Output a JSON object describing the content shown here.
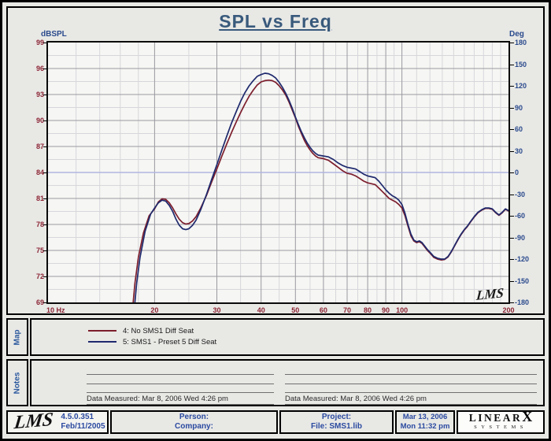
{
  "title": "SPL vs Freq",
  "watermark": "LMS",
  "map_tab": "Map",
  "notes_tab": "Notes",
  "axes": {
    "left": {
      "label": "dBSPL",
      "ticks": [
        99,
        96,
        93,
        90,
        87,
        84,
        81,
        78,
        75,
        72,
        69
      ],
      "color": "#8b2433"
    },
    "right": {
      "label": "Deg",
      "ticks": [
        180,
        150,
        120,
        90,
        60,
        30,
        0,
        -30,
        -60,
        -90,
        -120,
        -150,
        -180
      ],
      "color": "#2a4a8c"
    },
    "x": {
      "first_label": "10 Hz",
      "tick_values": [
        20,
        30,
        40,
        50,
        60,
        70,
        80,
        90,
        100,
        200
      ],
      "color": "#8b2433"
    }
  },
  "legend": [
    {
      "label": "4: No SMS1 Diff Seat",
      "color": "#7c1e2c"
    },
    {
      "label": "5: SMS1 - Preset 5 Diff Seat",
      "color": "#1f2a6d"
    }
  ],
  "notes": {
    "left_caption": "Data Measured: Mar  8, 2006  Wed  4:26 pm",
    "right_caption": "Data Measured: Mar  8, 2006  Wed  4:26 pm"
  },
  "footer": {
    "logo": "LMS",
    "version": "4.5.0.351",
    "version_date": "Feb/11/2005",
    "person_label": "Person:",
    "company_label": "Company:",
    "project_label": "Project:",
    "file_label": "File: SMS1.lib",
    "date": "Mar 13, 2006",
    "time": "Mon 11:32 pm",
    "brand": {
      "name": "LINEAR",
      "x": "X",
      "sub": "SYSTEMS"
    }
  },
  "chart_data": {
    "type": "line",
    "title": "SPL vs Freq",
    "xlabel": "Hz",
    "ylabel_left": "dBSPL",
    "ylabel_right": "Deg",
    "x_scale": "log",
    "xlim": [
      10,
      200
    ],
    "ylim": [
      69,
      99
    ],
    "ylim_right": [
      -180,
      180
    ],
    "grid": {
      "x_major": [
        20,
        30,
        40,
        50,
        60,
        70,
        80,
        90,
        100
      ],
      "x_minor": [
        12,
        14,
        16,
        18,
        25,
        35,
        45,
        55,
        65,
        75,
        85,
        95,
        110,
        120,
        130,
        140,
        150,
        160,
        170,
        180,
        190
      ],
      "y_major": [
        96,
        93,
        90,
        87,
        81,
        78,
        75,
        72
      ],
      "y_accent": [
        84
      ],
      "y_minor": [
        97.5,
        94.5,
        91.5,
        88.5,
        85.5,
        82.5,
        79.5,
        76.5,
        73.5,
        70.5
      ],
      "major_color": "#9a9aa0",
      "minor_color": "#d7d7db",
      "accent_color": "#b0b6e0"
    },
    "series": [
      {
        "name": "4: No SMS1 Diff Seat",
        "color": "#7c1e2c",
        "points": [
          [
            17.4,
            69
          ],
          [
            17.6,
            71.2
          ],
          [
            18.0,
            74.2
          ],
          [
            18.6,
            77.0
          ],
          [
            19.3,
            79.0
          ],
          [
            20,
            79.8
          ],
          [
            20.5,
            80.6
          ],
          [
            21,
            80.95
          ],
          [
            21.5,
            80.9
          ],
          [
            22,
            80.5
          ],
          [
            22.5,
            79.9
          ],
          [
            23,
            79.2
          ],
          [
            23.5,
            78.6
          ],
          [
            24,
            78.2
          ],
          [
            24.5,
            78.05
          ],
          [
            25,
            78.1
          ],
          [
            25.6,
            78.4
          ],
          [
            26.2,
            78.9
          ],
          [
            27,
            79.9
          ],
          [
            28,
            81.3
          ],
          [
            29,
            82.9
          ],
          [
            30,
            84.4
          ],
          [
            31,
            85.9
          ],
          [
            32,
            87.3
          ],
          [
            33,
            88.6
          ],
          [
            34,
            89.8
          ],
          [
            35,
            90.9
          ],
          [
            36,
            91.9
          ],
          [
            37,
            92.8
          ],
          [
            38,
            93.5
          ],
          [
            39,
            94.1
          ],
          [
            40,
            94.45
          ],
          [
            41,
            94.6
          ],
          [
            42,
            94.65
          ],
          [
            43,
            94.6
          ],
          [
            44,
            94.4
          ],
          [
            45,
            94.0
          ],
          [
            46,
            93.5
          ],
          [
            47,
            92.9
          ],
          [
            48,
            92.1
          ],
          [
            49,
            91.2
          ],
          [
            50,
            90.3
          ],
          [
            51,
            89.3
          ],
          [
            52,
            88.5
          ],
          [
            53,
            87.7
          ],
          [
            54,
            87.1
          ],
          [
            55,
            86.6
          ],
          [
            56,
            86.2
          ],
          [
            57,
            85.9
          ],
          [
            58,
            85.7
          ],
          [
            60,
            85.6
          ],
          [
            62,
            85.4
          ],
          [
            64,
            85.0
          ],
          [
            66,
            84.6
          ],
          [
            68,
            84.2
          ],
          [
            70,
            83.9
          ],
          [
            72,
            83.8
          ],
          [
            74,
            83.6
          ],
          [
            76,
            83.3
          ],
          [
            78,
            83.0
          ],
          [
            80,
            82.8
          ],
          [
            82,
            82.7
          ],
          [
            84,
            82.6
          ],
          [
            86,
            82.2
          ],
          [
            88,
            81.8
          ],
          [
            90,
            81.4
          ],
          [
            92,
            81.0
          ],
          [
            94,
            80.8
          ],
          [
            96,
            80.6
          ],
          [
            98,
            80.3
          ],
          [
            100,
            79.9
          ],
          [
            102,
            79.0
          ],
          [
            104,
            77.8
          ],
          [
            106,
            76.7
          ],
          [
            108,
            76.1
          ],
          [
            110,
            75.9
          ],
          [
            112,
            76.0
          ],
          [
            114,
            75.8
          ],
          [
            116,
            75.4
          ],
          [
            118,
            75.0
          ],
          [
            120,
            74.7
          ],
          [
            123,
            74.2
          ],
          [
            126,
            74.0
          ],
          [
            129,
            73.9
          ],
          [
            132,
            73.95
          ],
          [
            135,
            74.25
          ],
          [
            138,
            74.85
          ],
          [
            141,
            75.55
          ],
          [
            144,
            76.25
          ],
          [
            147,
            76.85
          ],
          [
            150,
            77.35
          ],
          [
            153,
            77.75
          ],
          [
            156,
            78.25
          ],
          [
            160,
            78.85
          ],
          [
            164,
            79.35
          ],
          [
            168,
            79.65
          ],
          [
            172,
            79.85
          ],
          [
            176,
            79.85
          ],
          [
            180,
            79.75
          ],
          [
            184,
            79.35
          ],
          [
            188,
            79.05
          ],
          [
            192,
            79.35
          ],
          [
            196,
            79.75
          ],
          [
            200,
            79.55
          ]
        ]
      },
      {
        "name": "5: SMS1 - Preset 5 Diff Seat",
        "color": "#1f2a6d",
        "points": [
          [
            17.6,
            69
          ],
          [
            17.8,
            71.2
          ],
          [
            18.2,
            74.2
          ],
          [
            18.8,
            77.2
          ],
          [
            19.5,
            79.2
          ],
          [
            20,
            79.9
          ],
          [
            20.5,
            80.5
          ],
          [
            21,
            80.8
          ],
          [
            21.5,
            80.7
          ],
          [
            22,
            80.2
          ],
          [
            22.5,
            79.5
          ],
          [
            23,
            78.6
          ],
          [
            23.5,
            77.9
          ],
          [
            24,
            77.5
          ],
          [
            24.5,
            77.4
          ],
          [
            25,
            77.5
          ],
          [
            25.6,
            77.9
          ],
          [
            26.2,
            78.5
          ],
          [
            27,
            79.7
          ],
          [
            28,
            81.4
          ],
          [
            29,
            83.2
          ],
          [
            30,
            84.9
          ],
          [
            31,
            86.6
          ],
          [
            32,
            88.2
          ],
          [
            33,
            89.7
          ],
          [
            34,
            91.0
          ],
          [
            35,
            92.2
          ],
          [
            36,
            93.2
          ],
          [
            37,
            94.0
          ],
          [
            38,
            94.6
          ],
          [
            39,
            95.1
          ],
          [
            40,
            95.3
          ],
          [
            41,
            95.45
          ],
          [
            42,
            95.4
          ],
          [
            43,
            95.2
          ],
          [
            44,
            94.9
          ],
          [
            45,
            94.4
          ],
          [
            46,
            93.8
          ],
          [
            47,
            93.1
          ],
          [
            48,
            92.3
          ],
          [
            49,
            91.4
          ],
          [
            50,
            90.4
          ],
          [
            51,
            89.5
          ],
          [
            52,
            88.7
          ],
          [
            53,
            88.0
          ],
          [
            54,
            87.4
          ],
          [
            55,
            86.9
          ],
          [
            56,
            86.5
          ],
          [
            57,
            86.2
          ],
          [
            58,
            86.0
          ],
          [
            60,
            85.9
          ],
          [
            62,
            85.8
          ],
          [
            64,
            85.5
          ],
          [
            66,
            85.1
          ],
          [
            68,
            84.8
          ],
          [
            70,
            84.6
          ],
          [
            72,
            84.5
          ],
          [
            74,
            84.4
          ],
          [
            76,
            84.1
          ],
          [
            78,
            83.8
          ],
          [
            80,
            83.6
          ],
          [
            82,
            83.5
          ],
          [
            84,
            83.4
          ],
          [
            86,
            83.0
          ],
          [
            88,
            82.5
          ],
          [
            90,
            82.0
          ],
          [
            92,
            81.6
          ],
          [
            94,
            81.3
          ],
          [
            96,
            81.1
          ],
          [
            98,
            80.8
          ],
          [
            100,
            80.3
          ],
          [
            102,
            79.3
          ],
          [
            104,
            78.0
          ],
          [
            106,
            76.9
          ],
          [
            108,
            76.2
          ],
          [
            110,
            76.0
          ],
          [
            112,
            76.1
          ],
          [
            114,
            75.9
          ],
          [
            116,
            75.5
          ],
          [
            118,
            75.1
          ],
          [
            120,
            74.8
          ],
          [
            123,
            74.3
          ],
          [
            126,
            74.1
          ],
          [
            129,
            74.0
          ],
          [
            132,
            74.0
          ],
          [
            135,
            74.3
          ],
          [
            138,
            74.9
          ],
          [
            141,
            75.6
          ],
          [
            144,
            76.3
          ],
          [
            147,
            76.9
          ],
          [
            150,
            77.4
          ],
          [
            153,
            77.8
          ],
          [
            156,
            78.3
          ],
          [
            160,
            78.9
          ],
          [
            164,
            79.4
          ],
          [
            168,
            79.7
          ],
          [
            172,
            79.9
          ],
          [
            176,
            79.9
          ],
          [
            180,
            79.8
          ],
          [
            184,
            79.4
          ],
          [
            188,
            79.1
          ],
          [
            192,
            79.4
          ],
          [
            196,
            79.8
          ],
          [
            200,
            79.6
          ]
        ]
      }
    ],
    "legend_position": "bottom-map-panel"
  }
}
